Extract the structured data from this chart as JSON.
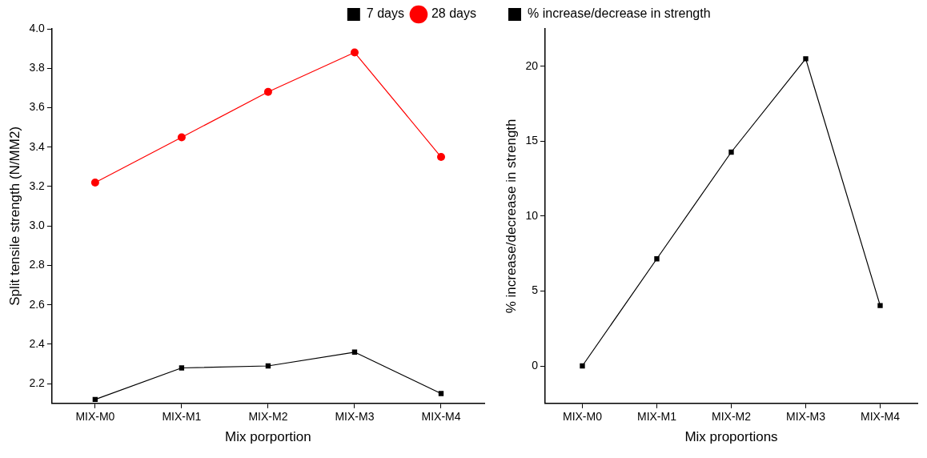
{
  "chart_data": [
    {
      "type": "line",
      "xlabel": "Mix porportion",
      "ylabel": "Split tensile strength (N/MM2)",
      "categories": [
        "MIX-M0",
        "MIX-M1",
        "MIX-M2",
        "MIX-M3",
        "MIX-M4"
      ],
      "series": [
        {
          "name": "7 days",
          "color": "#000000",
          "marker": "square",
          "values": [
            2.12,
            2.28,
            2.29,
            2.36,
            2.15
          ]
        },
        {
          "name": "28 days",
          "color": "#ff0000",
          "marker": "circle",
          "values": [
            3.22,
            3.45,
            3.68,
            3.88,
            3.35
          ]
        }
      ],
      "ylim": [
        2.1,
        4.0
      ],
      "yticks": [
        {
          "value": 2.2,
          "label": "2.2"
        },
        {
          "value": 2.4,
          "label": "2.4"
        },
        {
          "value": 2.6,
          "label": "2.6"
        },
        {
          "value": 2.8,
          "label": "2.8"
        },
        {
          "value": 3.0,
          "label": "3.0"
        },
        {
          "value": 3.2,
          "label": "3.2"
        },
        {
          "value": 3.4,
          "label": "3.4"
        },
        {
          "value": 3.6,
          "label": "3.6"
        },
        {
          "value": 3.8,
          "label": "3.8"
        },
        {
          "value": 4.0,
          "label": "4.0"
        }
      ],
      "grid": false,
      "legend": "top right"
    },
    {
      "type": "line",
      "xlabel": "Mix proportions",
      "ylabel": "% increase/decrease in strength",
      "categories": [
        "MIX-M0",
        "MIX-M1",
        "MIX-M2",
        "MIX-M3",
        "MIX-M4"
      ],
      "series": [
        {
          "name": "% increase/decrease in strength",
          "color": "#000000",
          "marker": "square",
          "values": [
            0,
            7.15,
            14.27,
            20.5,
            4.03
          ]
        }
      ],
      "ylim": [
        -2.5,
        22.5
      ],
      "yticks": [
        0,
        5,
        10,
        15,
        20
      ],
      "grid": false,
      "legend": "top left"
    }
  ]
}
